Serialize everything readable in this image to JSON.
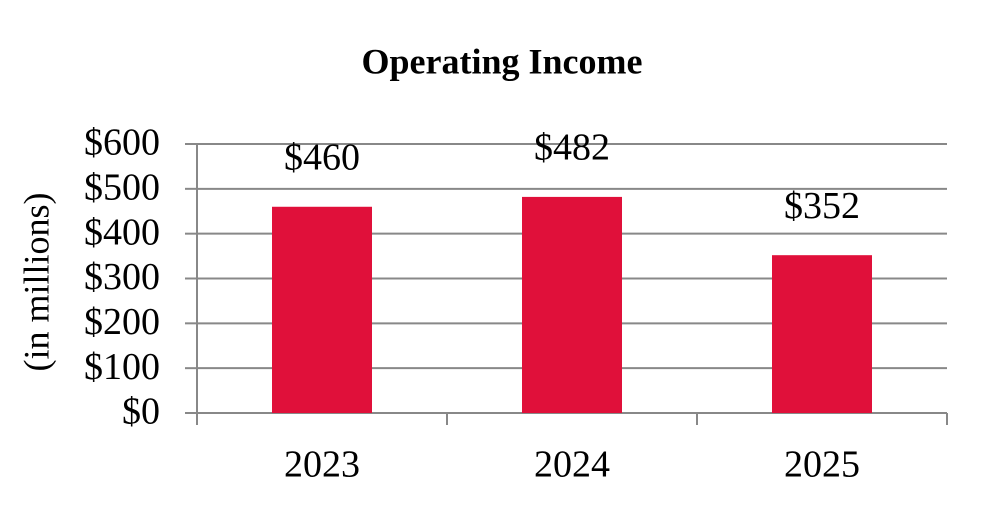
{
  "chart_data": {
    "type": "bar",
    "title": "Operating Income",
    "y_label": "(in millions)",
    "categories": [
      "2023",
      "2024",
      "2025"
    ],
    "values": [
      460,
      482,
      352
    ],
    "value_labels": [
      "$460",
      "$482",
      "$352"
    ],
    "color": "#e0103a",
    "ylim": [
      0,
      600
    ],
    "yticks": [
      {
        "value": 0,
        "label": "$0"
      },
      {
        "value": 100,
        "label": "$100"
      },
      {
        "value": 200,
        "label": "$200"
      },
      {
        "value": 300,
        "label": "$300"
      },
      {
        "value": 400,
        "label": "$400"
      },
      {
        "value": 500,
        "label": "$500"
      },
      {
        "value": 600,
        "label": "$600"
      }
    ],
    "grid": true
  }
}
